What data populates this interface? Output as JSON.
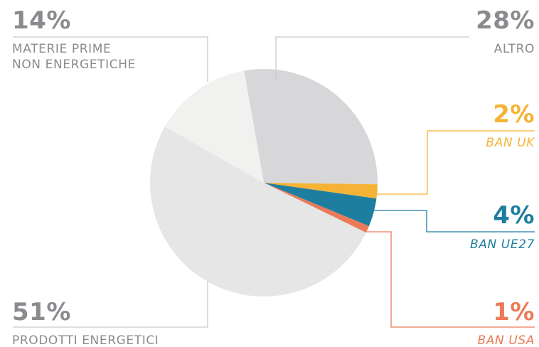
{
  "chart_data": {
    "type": "pie",
    "slices": [
      {
        "key": "altro",
        "pct_label": "28%",
        "value": 28,
        "label_line1": "ALTRO",
        "label_line2": "",
        "color": "#d7d7da"
      },
      {
        "key": "ban_uk",
        "pct_label": "2%",
        "value": 2,
        "label_line1": "BAN UK",
        "label_line2": "",
        "color": "#f5b335"
      },
      {
        "key": "ban_ue27",
        "pct_label": "4%",
        "value": 4,
        "label_line1": "BAN UE27",
        "label_line2": "",
        "color": "#1e7ea0"
      },
      {
        "key": "ban_usa",
        "pct_label": "1%",
        "value": 1,
        "label_line1": "BAN USA",
        "label_line2": "",
        "color": "#ec7a58"
      },
      {
        "key": "prodotti_energetici",
        "pct_label": "51%",
        "value": 51,
        "label_line1": "PRODOTTI ENERGETICI",
        "label_line2": "",
        "color": "#e6e6e6"
      },
      {
        "key": "materie_prime",
        "pct_label": "14%",
        "value": 14,
        "label_line1": "MATERIE PRIME",
        "label_line2": "NON ENERGETICHE",
        "color": "#f1f1ef"
      }
    ]
  },
  "colors": {
    "label_gray": "#8b8b8f",
    "leader_gray": "#c9c9cc"
  }
}
